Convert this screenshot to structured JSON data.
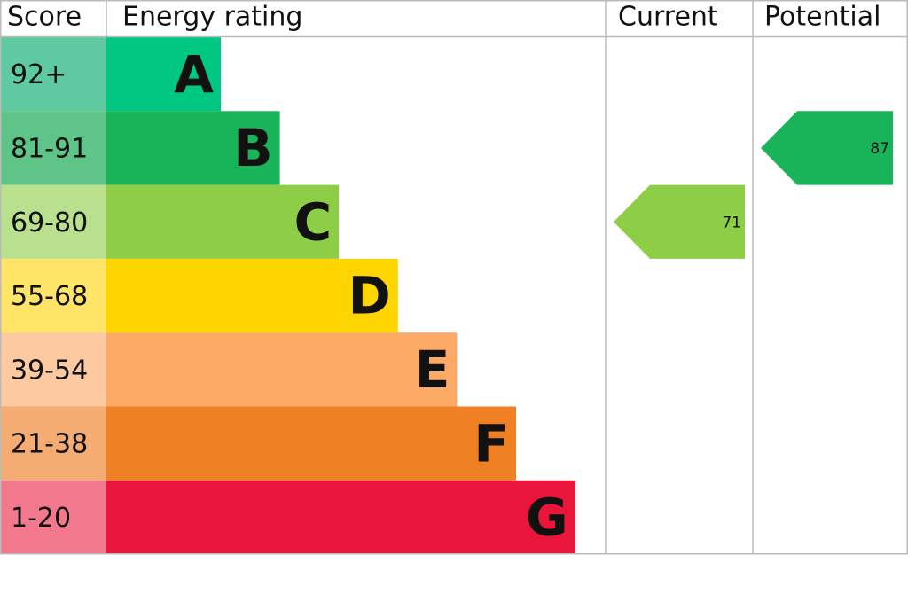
{
  "header": {
    "score": "Score",
    "rating": "Energy rating",
    "current": "Current",
    "potential": "Potential"
  },
  "bands": [
    {
      "score": "92+",
      "letter": "A",
      "color": "#00c781",
      "score_color": "#5fc9a1"
    },
    {
      "score": "81-91",
      "letter": "B",
      "color": "#19b459",
      "score_color": "#5ec488"
    },
    {
      "score": "69-80",
      "letter": "C",
      "color": "#8dce46",
      "score_color": "#b9e08c"
    },
    {
      "score": "55-68",
      "letter": "D",
      "color": "#ffd500",
      "score_color": "#ffe468"
    },
    {
      "score": "39-54",
      "letter": "E",
      "color": "#fcaa65",
      "score_color": "#fdc9a1"
    },
    {
      "score": "21-38",
      "letter": "F",
      "color": "#ef8023",
      "score_color": "#f4ac73"
    },
    {
      "score": "1-20",
      "letter": "G",
      "color": "#e9153b",
      "score_color": "#f2788d"
    }
  ],
  "current": {
    "value": 71
  },
  "potential": {
    "value": 87
  }
}
